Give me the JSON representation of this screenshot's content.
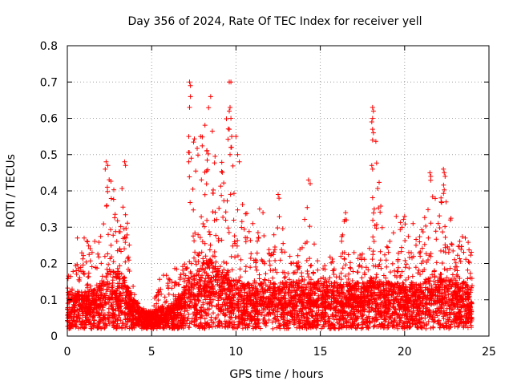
{
  "chart_data": {
    "type": "scatter",
    "title": "Day 356 of 2024, Rate Of TEC Index for receiver yell",
    "xlabel": "GPS time / hours",
    "ylabel": "ROTI / TECUs",
    "xlim": [
      0,
      25
    ],
    "ylim": [
      0,
      0.8
    ],
    "x_ticks": [
      "0",
      "5",
      "10",
      "15",
      "20",
      "25"
    ],
    "y_ticks": [
      "0",
      "0.1",
      "0.2",
      "0.3",
      "0.4",
      "0.5",
      "0.6",
      "0.7",
      "0.8"
    ],
    "marker": "+",
    "grid": true,
    "color": "#ff0000",
    "series": [
      {
        "name": "ROTI",
        "profile_hours": [
          0,
          0.5,
          1,
          1.5,
          2,
          2.3,
          2.6,
          3,
          3.4,
          3.8,
          4.2,
          4.6,
          5,
          5.5,
          6,
          6.5,
          7,
          7.3,
          7.6,
          8,
          8.5,
          9,
          9.5,
          9.8,
          10.2,
          10.6,
          11,
          11.5,
          12,
          12.5,
          13,
          13.5,
          14,
          14.3,
          14.7,
          15,
          15.5,
          16,
          16.5,
          17,
          17.5,
          18,
          18.3,
          18.7,
          19,
          19.5,
          20,
          20.5,
          21,
          21.5,
          22,
          22.5,
          23,
          23.5,
          24
        ],
        "profile_peak_roti": [
          0.17,
          0.2,
          0.27,
          0.25,
          0.3,
          0.48,
          0.43,
          0.38,
          0.47,
          0.18,
          0.1,
          0.08,
          0.07,
          0.17,
          0.17,
          0.2,
          0.25,
          0.7,
          0.55,
          0.55,
          0.66,
          0.42,
          0.7,
          0.55,
          0.47,
          0.35,
          0.25,
          0.35,
          0.28,
          0.39,
          0.22,
          0.2,
          0.3,
          0.42,
          0.24,
          0.18,
          0.22,
          0.22,
          0.34,
          0.2,
          0.24,
          0.3,
          0.63,
          0.3,
          0.33,
          0.3,
          0.33,
          0.26,
          0.3,
          0.45,
          0.35,
          0.46,
          0.25,
          0.28,
          0.25
        ],
        "profile_base_roti": [
          0.06,
          0.06,
          0.06,
          0.07,
          0.08,
          0.1,
          0.1,
          0.1,
          0.09,
          0.06,
          0.04,
          0.03,
          0.03,
          0.04,
          0.04,
          0.05,
          0.07,
          0.1,
          0.1,
          0.12,
          0.12,
          0.1,
          0.1,
          0.09,
          0.08,
          0.08,
          0.08,
          0.08,
          0.08,
          0.08,
          0.08,
          0.08,
          0.08,
          0.09,
          0.08,
          0.08,
          0.08,
          0.08,
          0.08,
          0.08,
          0.08,
          0.09,
          0.09,
          0.08,
          0.08,
          0.08,
          0.08,
          0.08,
          0.08,
          0.09,
          0.09,
          0.09,
          0.08,
          0.08,
          0.07
        ],
        "outliers": [
          [
            7.25,
            0.7
          ],
          [
            7.3,
            0.69
          ],
          [
            7.3,
            0.66
          ],
          [
            7.25,
            0.63
          ],
          [
            7.2,
            0.55
          ],
          [
            7.2,
            0.48
          ],
          [
            7.35,
            0.49
          ],
          [
            8.5,
            0.66
          ],
          [
            7.9,
            0.55
          ],
          [
            9.6,
            0.7
          ],
          [
            9.7,
            0.7
          ],
          [
            9.65,
            0.63
          ],
          [
            9.6,
            0.62
          ],
          [
            9.7,
            0.6
          ],
          [
            9.6,
            0.57
          ],
          [
            9.75,
            0.55
          ],
          [
            9.7,
            0.52
          ],
          [
            9.65,
            0.5
          ],
          [
            10.0,
            0.55
          ],
          [
            10.1,
            0.5
          ],
          [
            10.2,
            0.48
          ],
          [
            18.1,
            0.63
          ],
          [
            18.15,
            0.62
          ],
          [
            18.1,
            0.6
          ],
          [
            18.05,
            0.59
          ],
          [
            18.1,
            0.57
          ],
          [
            18.15,
            0.56
          ],
          [
            18.1,
            0.54
          ],
          [
            18.05,
            0.47
          ],
          [
            18.1,
            0.46
          ],
          [
            2.3,
            0.48
          ],
          [
            2.4,
            0.47
          ],
          [
            2.25,
            0.46
          ],
          [
            3.4,
            0.48
          ],
          [
            3.45,
            0.47
          ],
          [
            14.3,
            0.43
          ],
          [
            14.4,
            0.42
          ],
          [
            12.5,
            0.39
          ],
          [
            12.55,
            0.38
          ],
          [
            21.5,
            0.45
          ],
          [
            21.55,
            0.44
          ],
          [
            22.3,
            0.46
          ],
          [
            22.35,
            0.45
          ],
          [
            22.4,
            0.44
          ],
          [
            16.5,
            0.34
          ],
          [
            16.55,
            0.32
          ],
          [
            17.0,
            0.23
          ],
          [
            18.2,
            0.35
          ],
          [
            0.6,
            0.27
          ],
          [
            1.0,
            0.27
          ],
          [
            1.2,
            0.26
          ],
          [
            19.5,
            0.33
          ],
          [
            20.0,
            0.33
          ],
          [
            20.5,
            0.31
          ],
          [
            11.4,
            0.35
          ],
          [
            11.6,
            0.34
          ],
          [
            11.0,
            0.31
          ],
          [
            13.2,
            0.22
          ]
        ]
      }
    ]
  }
}
